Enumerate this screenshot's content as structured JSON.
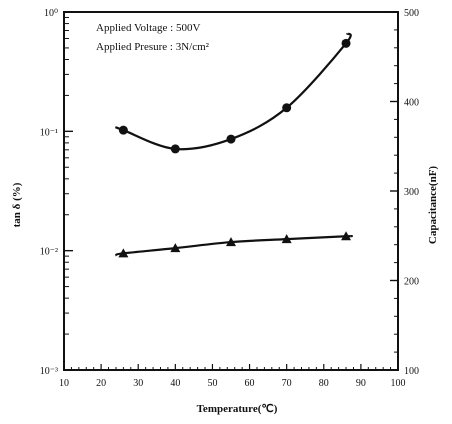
{
  "chart_data": {
    "type": "scatter",
    "xlabel": "Temperature(℃)",
    "ylabel_left": "tan δ (%)",
    "ylabel_right": "Capacitance(nF)",
    "xlim": [
      10,
      100
    ],
    "ylim_left": [
      0.001,
      1
    ],
    "ylim_left_scale": "log",
    "ylim_right": [
      100,
      500
    ],
    "x_ticks": [
      10,
      20,
      30,
      40,
      50,
      60,
      70,
      80,
      90,
      100
    ],
    "x_tick_labels": [
      "10",
      "20",
      "30",
      "40",
      "50",
      "60",
      "70",
      "80",
      "90",
      "100"
    ],
    "y_left_tick_labels": [
      "10⁻³",
      "10⁻²",
      "10⁻¹",
      "10⁰"
    ],
    "y_right_ticks": [
      100,
      200,
      300,
      400,
      500
    ],
    "y_right_tick_labels": [
      "100",
      "200",
      "300",
      "400",
      "500"
    ],
    "grid": false,
    "annotations": [
      "Applied Voltage : 500V",
      "Applied Presure : 3N/cm²"
    ],
    "series": [
      {
        "marker": "circle",
        "axis": "right",
        "x": [
          26,
          40,
          55,
          70,
          86
        ],
        "y": [
          368,
          347,
          358,
          393,
          465
        ]
      },
      {
        "marker": "triangle",
        "axis": "left",
        "x": [
          26,
          40,
          55,
          70,
          86
        ],
        "y": [
          0.0095,
          0.0105,
          0.0118,
          0.0125,
          0.0132
        ]
      }
    ]
  }
}
